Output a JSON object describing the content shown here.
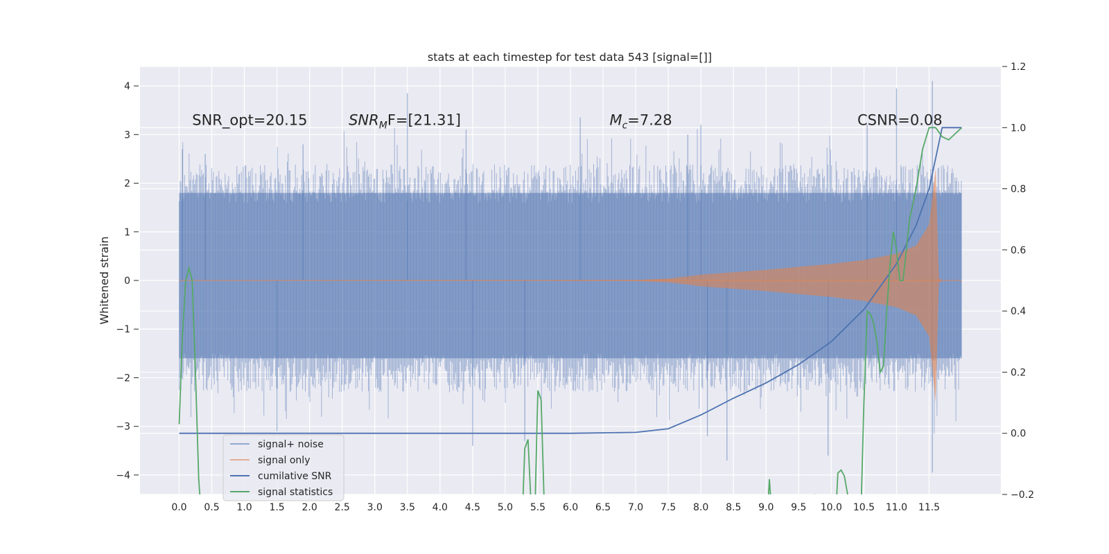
{
  "chart_data": {
    "type": "line",
    "title": "stats at each timestep for test data 543 [signal=[]]",
    "ylabel": "Whitened strain",
    "xlim": [
      -0.6,
      12.6
    ],
    "ylim_left": [
      -4.4,
      4.4
    ],
    "ylim_right": [
      -0.2,
      1.2
    ],
    "x_ticks": [
      0.0,
      0.5,
      1.0,
      1.5,
      2.0,
      2.5,
      3.0,
      3.5,
      4.0,
      4.5,
      5.0,
      5.5,
      6.0,
      6.5,
      7.0,
      7.5,
      8.0,
      8.5,
      9.0,
      9.5,
      10.0,
      10.5,
      11.0,
      11.5
    ],
    "x_tick_labels": [
      "0.0",
      "0.5",
      "1.0",
      "1.5",
      "2.0",
      "2.5",
      "3.0",
      "3.5",
      "4.0",
      "4.5",
      "5.0",
      "5.5",
      "6.0",
      "6.5",
      "7.0",
      "7.5",
      "8.0",
      "8.5",
      "9.0",
      "9.5",
      "10.0",
      "10.5",
      "11.0",
      "11.5"
    ],
    "y_left_ticks": [
      4,
      3,
      2,
      1,
      0,
      -1,
      -2,
      -3,
      -4
    ],
    "y_left_tick_labels": [
      "4",
      "3",
      "2",
      "1",
      "0",
      "−1",
      "−2",
      "−3",
      "−4"
    ],
    "y_right_ticks": [
      1.2,
      1.0,
      0.8,
      0.6,
      0.4,
      0.2,
      0.0,
      -0.2
    ],
    "y_right_tick_labels": [
      "1.2",
      "1.0",
      "0.8",
      "0.6",
      "0.4",
      "0.2",
      "0.0",
      "−0.2"
    ],
    "annotations": [
      {
        "text": "SNR_opt=20.15",
        "x": 0.2,
        "y": 3.2
      },
      {
        "text": "SNR",
        "sub": "M",
        "rest": "F=[21.31]",
        "x": 2.6,
        "y": 3.2
      },
      {
        "text": "M",
        "sub": "c",
        "rest": "=7.28",
        "x": 6.6,
        "y": 3.2
      },
      {
        "text": "CSNR=0.08",
        "x": 10.4,
        "y": 3.2
      }
    ],
    "legend": {
      "position": "lower-left",
      "entries": [
        {
          "label": "signal+ noise",
          "color": "#4c72b0",
          "alpha": 0.55
        },
        {
          "label": "signal only",
          "color": "#dd8452",
          "alpha": 0.6
        },
        {
          "label": "cumilative SNR",
          "color": "#4c72b0",
          "alpha": 1.0
        },
        {
          "label": "signal statistics",
          "color": "#55a868",
          "alpha": 1.0
        }
      ]
    },
    "series": [
      {
        "name": "signal+ noise",
        "axis": "left",
        "kind": "noise_band",
        "x_range": [
          0.0,
          12.0
        ],
        "band": [
          -1.6,
          1.8
        ],
        "peaks": [
          {
            "x": 0.05,
            "y": 2.7
          },
          {
            "x": 0.4,
            "y": 2.6
          },
          {
            "x": 1.9,
            "y": 2.8
          },
          {
            "x": 3.5,
            "y": 3.85
          },
          {
            "x": 4.5,
            "y": -3.4
          },
          {
            "x": 4.4,
            "y": 3.1
          },
          {
            "x": 6.15,
            "y": 3.35
          },
          {
            "x": 8.0,
            "y": 3.2
          },
          {
            "x": 8.1,
            "y": -3.2
          },
          {
            "x": 8.4,
            "y": -3.7
          },
          {
            "x": 9.95,
            "y": -3.6
          },
          {
            "x": 10.55,
            "y": 3.2
          },
          {
            "x": 11.0,
            "y": 3.95
          },
          {
            "x": 11.55,
            "y": 4.1
          },
          {
            "x": 11.55,
            "y": -3.95
          },
          {
            "x": 5.3,
            "y": -3.3
          },
          {
            "x": 1.5,
            "y": -3.1
          },
          {
            "x": 7.8,
            "y": 3.0
          }
        ]
      },
      {
        "name": "signal only",
        "axis": "left",
        "kind": "envelope",
        "x": [
          0.0,
          7.0,
          7.5,
          8.0,
          8.5,
          9.0,
          9.5,
          10.0,
          10.5,
          11.0,
          11.3,
          11.5,
          11.6,
          11.65,
          11.7,
          12.0
        ],
        "upper": [
          0.0,
          0.01,
          0.04,
          0.12,
          0.17,
          0.22,
          0.28,
          0.34,
          0.42,
          0.55,
          0.72,
          1.15,
          2.3,
          0.05,
          0.0,
          0.0
        ],
        "lower": [
          0.0,
          -0.01,
          -0.04,
          -0.12,
          -0.17,
          -0.22,
          -0.28,
          -0.34,
          -0.42,
          -0.55,
          -0.72,
          -1.15,
          -2.5,
          -0.05,
          0.0,
          0.0
        ]
      },
      {
        "name": "cumilative SNR",
        "axis": "right",
        "x": [
          0.0,
          6.0,
          7.0,
          7.5,
          8.0,
          8.5,
          9.0,
          9.5,
          10.0,
          10.5,
          11.0,
          11.3,
          11.5,
          11.65,
          11.7,
          12.0
        ],
        "y": [
          0.0,
          0.0,
          0.003,
          0.015,
          0.06,
          0.115,
          0.165,
          0.225,
          0.3,
          0.405,
          0.555,
          0.68,
          0.8,
          0.95,
          1.0,
          1.0
        ]
      },
      {
        "name": "signal statistics",
        "axis": "right",
        "x": [
          0.0,
          0.05,
          0.1,
          0.15,
          0.2,
          0.25,
          0.3,
          0.35,
          0.4,
          5.25,
          5.3,
          5.35,
          5.4,
          5.45,
          5.5,
          5.55,
          5.6,
          5.65,
          5.7,
          9.0,
          9.05,
          9.1,
          9.7,
          9.75,
          10.05,
          10.1,
          10.15,
          10.2,
          10.25,
          10.45,
          10.5,
          10.55,
          10.6,
          10.65,
          10.7,
          10.75,
          10.8,
          10.85,
          10.9,
          10.95,
          11.0,
          11.05,
          11.1,
          11.15,
          11.2,
          11.3,
          11.4,
          11.5,
          11.6,
          11.7,
          11.8,
          11.9,
          12.0
        ],
        "y": [
          0.03,
          0.32,
          0.5,
          0.54,
          0.5,
          0.2,
          -0.15,
          -0.3,
          -0.4,
          -0.35,
          -0.05,
          -0.02,
          -0.25,
          -0.3,
          0.14,
          0.11,
          -0.25,
          -0.3,
          -0.35,
          -0.35,
          -0.15,
          -0.3,
          -0.35,
          -0.2,
          -0.35,
          -0.13,
          -0.12,
          -0.14,
          -0.2,
          -0.3,
          0.1,
          0.4,
          0.39,
          0.36,
          0.3,
          0.2,
          0.22,
          0.4,
          0.55,
          0.66,
          0.6,
          0.5,
          0.5,
          0.6,
          0.7,
          0.8,
          0.93,
          1.0,
          1.0,
          0.97,
          0.96,
          0.98,
          1.0
        ]
      }
    ]
  }
}
